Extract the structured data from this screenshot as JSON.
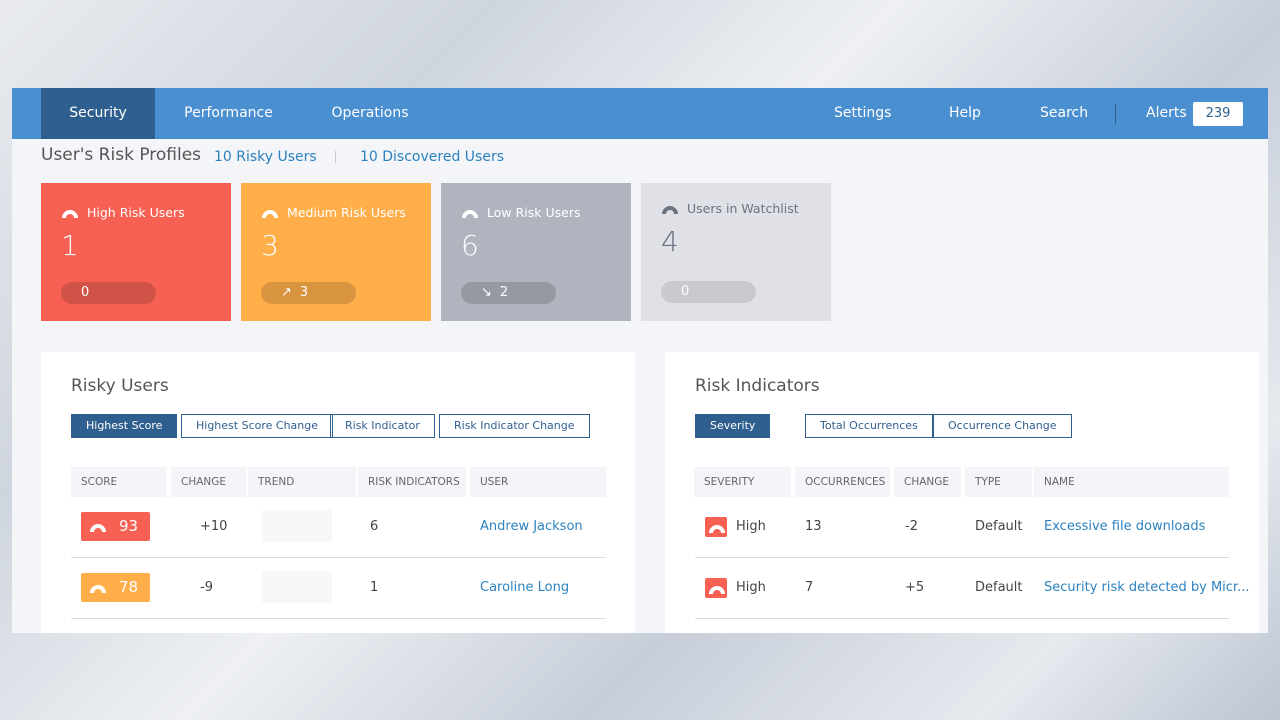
{
  "nav": {
    "left": [
      "Security",
      "Performance",
      "Operations"
    ],
    "right": [
      "Settings",
      "Help",
      "Search"
    ],
    "alerts_label": "Alerts",
    "alerts_count": "239"
  },
  "profiles": {
    "title": "User's Risk Profiles",
    "links": [
      "10 Risky Users",
      "10 Discovered Users"
    ],
    "cards": [
      {
        "label": "High Risk Users",
        "count": "1",
        "change": "0"
      },
      {
        "label": "Medium Risk Users",
        "count": "3",
        "change": "3"
      },
      {
        "label": "Low Risk Users",
        "count": "6",
        "change": "2"
      },
      {
        "label": "Users in Watchlist",
        "count": "4",
        "change": "0"
      }
    ]
  },
  "risky_users": {
    "title": "Risky Users",
    "filters": [
      "Highest Score",
      "Highest Score Change",
      "Risk Indicator",
      "Risk Indicator Change"
    ],
    "headers": [
      "SCORE",
      "CHANGE",
      "TREND",
      "RISK INDICATORS",
      "USER"
    ],
    "rows": [
      {
        "score": "93",
        "change": "+10",
        "indicators": "6",
        "user": "Andrew Jackson"
      },
      {
        "score": "78",
        "change": "-9",
        "indicators": "1",
        "user": "Caroline Long"
      }
    ]
  },
  "risk_indicators": {
    "title": "Risk Indicators",
    "filters": [
      "Severity",
      "Total Occurrences",
      "Occurrence Change"
    ],
    "headers": [
      "SEVERITY",
      "OCCURRENCES",
      "CHANGE",
      "TYPE",
      "NAME"
    ],
    "rows": [
      {
        "severity": "High",
        "occurrences": "13",
        "change": "-2",
        "type": "Default",
        "name": "Excessive file downloads"
      },
      {
        "severity": "High",
        "occurrences": "7",
        "change": "+5",
        "type": "Default",
        "name": "Security risk detected by Micr..."
      }
    ]
  }
}
